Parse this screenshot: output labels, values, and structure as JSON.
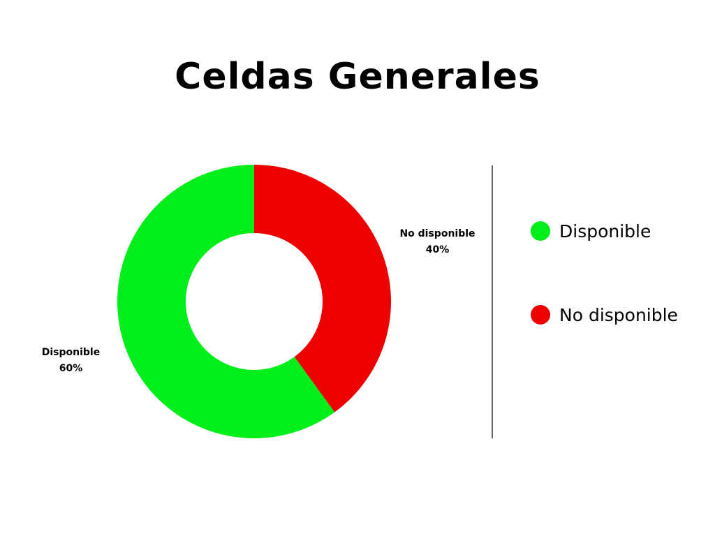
{
  "chart_data": {
    "type": "pie",
    "title": "Celdas Generales",
    "donut": true,
    "categories": [
      "Disponible",
      "No disponible"
    ],
    "values": [
      60,
      40
    ],
    "value_labels": [
      "60%",
      "40%"
    ],
    "colors": [
      "#00ee1a",
      "#ee0000"
    ],
    "legend": {
      "placement": "right",
      "entries": [
        "Disponible",
        "No disponible"
      ]
    }
  }
}
